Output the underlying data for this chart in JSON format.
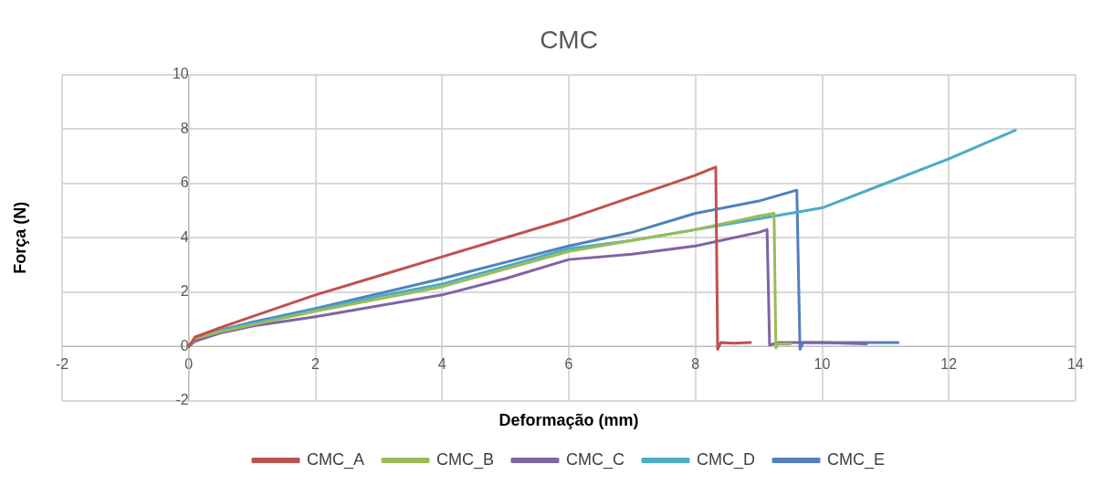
{
  "chart_data": {
    "type": "line",
    "title": "CMC",
    "xlabel": "Deformação (mm)",
    "ylabel": "Força (N)",
    "xlim": [
      -2,
      14
    ],
    "xticks": [
      -2,
      0,
      2,
      4,
      6,
      8,
      10,
      12,
      14
    ],
    "ylim": [
      -2,
      10
    ],
    "yticks": [
      -2,
      0,
      2,
      4,
      6,
      8,
      10
    ],
    "grid": true,
    "legend": "bottom",
    "marker": "none",
    "line_style": "solid",
    "series": [
      {
        "name": "CMC_A",
        "color": "#c0504d",
        "x": [
          0,
          0.1,
          0.5,
          1,
          2,
          3,
          4,
          5,
          6,
          7,
          8,
          8.32,
          8.35,
          8.4,
          8.6,
          8.87
        ],
        "values": [
          0,
          0.35,
          0.7,
          1.1,
          1.9,
          2.6,
          3.3,
          4.0,
          4.7,
          5.5,
          6.3,
          6.6,
          -0.1,
          0.15,
          0.12,
          0.15
        ]
      },
      {
        "name": "CMC_B",
        "color": "#9bbb59",
        "x": [
          0,
          0.1,
          0.5,
          1,
          2,
          3,
          4,
          5,
          6,
          7,
          8,
          9,
          9.24,
          9.27,
          9.3,
          9.5
        ],
        "values": [
          0,
          0.3,
          0.55,
          0.8,
          1.3,
          1.75,
          2.2,
          2.85,
          3.5,
          3.9,
          4.3,
          4.8,
          4.9,
          -0.05,
          0.1,
          0.1
        ]
      },
      {
        "name": "CMC_C",
        "color": "#8064a2",
        "x": [
          0,
          0.1,
          0.5,
          1,
          2,
          3,
          4,
          5,
          6,
          7,
          8,
          9,
          9.13,
          9.17,
          9.3,
          10,
          10.7
        ],
        "values": [
          0,
          0.2,
          0.5,
          0.75,
          1.1,
          1.5,
          1.9,
          2.5,
          3.2,
          3.4,
          3.7,
          4.2,
          4.3,
          0.05,
          0.15,
          0.15,
          0.1
        ]
      },
      {
        "name": "CMC_D",
        "color": "#4bacc6",
        "x": [
          0,
          0.1,
          0.5,
          1,
          2,
          3,
          4,
          5,
          6,
          7,
          8,
          9,
          10,
          11,
          12,
          13.05
        ],
        "values": [
          0,
          0.3,
          0.6,
          0.85,
          1.35,
          1.85,
          2.3,
          2.95,
          3.6,
          3.9,
          4.3,
          4.7,
          5.1,
          6.0,
          6.9,
          7.95
        ]
      },
      {
        "name": "CMC_E",
        "color": "#4f81bd",
        "x": [
          0,
          0.1,
          0.5,
          1,
          2,
          3,
          4,
          5,
          6,
          7,
          8,
          9,
          9.6,
          9.65,
          9.7,
          10,
          10.5,
          11.2
        ],
        "values": [
          0,
          0.3,
          0.6,
          0.9,
          1.4,
          1.95,
          2.5,
          3.1,
          3.7,
          4.2,
          4.9,
          5.35,
          5.75,
          -0.1,
          0.15,
          0.15,
          0.15,
          0.15
        ]
      }
    ]
  }
}
